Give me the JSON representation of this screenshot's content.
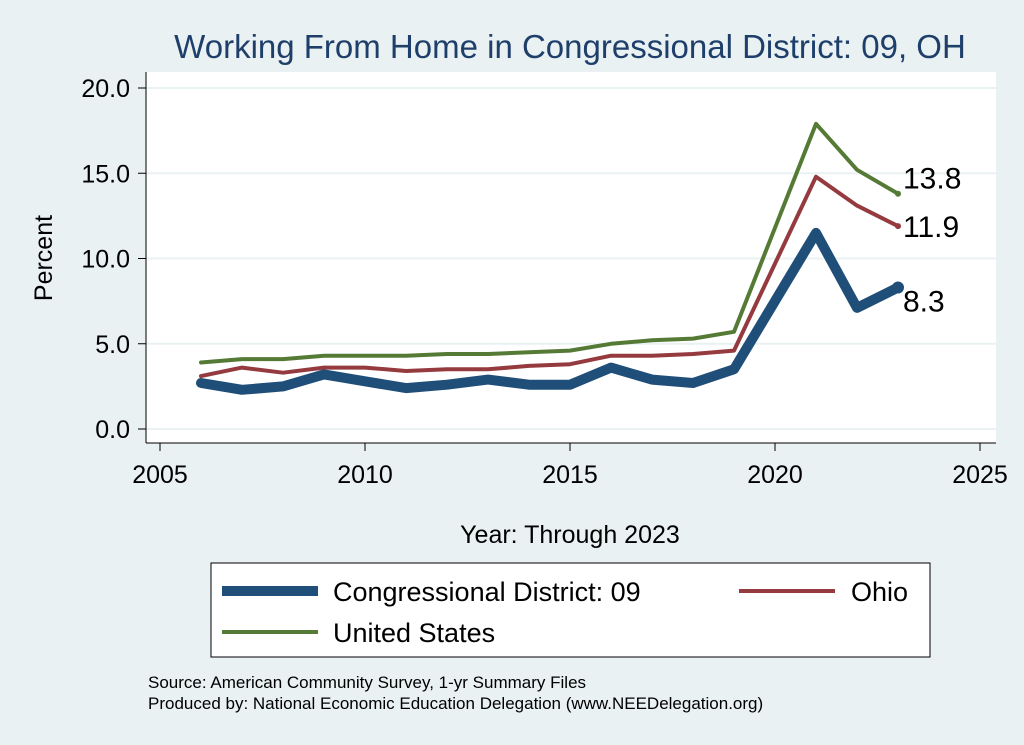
{
  "chart_data": {
    "type": "line",
    "title": "Working From Home in Congressional District: 09, OH",
    "xlabel": "Year: Through 2023",
    "ylabel": "Percent",
    "xlim": [
      2005,
      2025
    ],
    "ylim": [
      0,
      20
    ],
    "x_ticks": [
      "2005",
      "2010",
      "2015",
      "2020",
      "2025"
    ],
    "y_ticks": [
      "0.0",
      "5.0",
      "10.0",
      "15.0",
      "20.0"
    ],
    "grid": true,
    "legend_position": "bottom",
    "x": [
      2006,
      2007,
      2008,
      2009,
      2010,
      2011,
      2012,
      2013,
      2014,
      2015,
      2016,
      2017,
      2018,
      2019,
      2020,
      2021,
      2022,
      2023
    ],
    "series": [
      {
        "name": "Congressional District: 09",
        "color": "#1f4e79",
        "values": [
          2.7,
          2.3,
          2.5,
          3.2,
          2.8,
          2.4,
          2.6,
          2.9,
          2.6,
          2.6,
          3.6,
          2.9,
          2.7,
          3.5,
          7.5,
          11.5,
          7.1,
          8.3
        ],
        "end_label": "8.3"
      },
      {
        "name": "Ohio",
        "color": "#953a3e",
        "values": [
          3.1,
          3.6,
          3.3,
          3.6,
          3.6,
          3.4,
          3.5,
          3.5,
          3.7,
          3.8,
          4.3,
          4.3,
          4.4,
          4.6,
          9.7,
          14.8,
          13.1,
          11.9
        ],
        "end_label": "11.9"
      },
      {
        "name": "United States",
        "color": "#557a35",
        "values": [
          3.9,
          4.1,
          4.1,
          4.3,
          4.3,
          4.3,
          4.4,
          4.4,
          4.5,
          4.6,
          5.0,
          5.2,
          5.3,
          5.7,
          11.8,
          17.9,
          15.2,
          13.8
        ],
        "end_label": "13.8"
      }
    ]
  },
  "source_line1": "Source: American Community Survey, 1-yr Summary Files",
  "source_line2": "Produced by: National Economic Education Delegation (www.NEEDelegation.org)"
}
